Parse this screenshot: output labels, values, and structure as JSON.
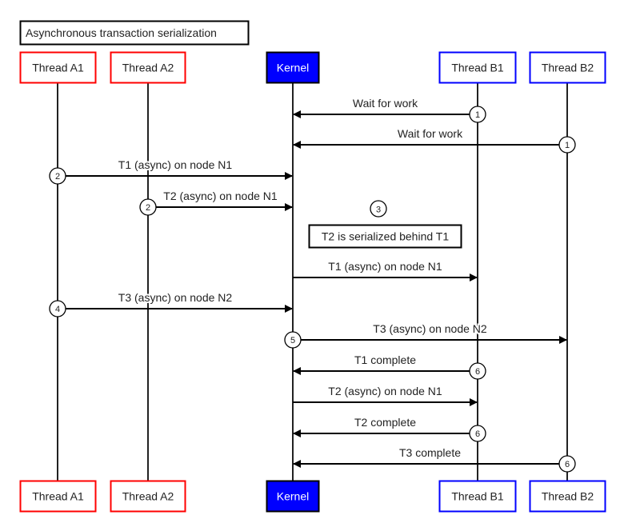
{
  "title": "Asynchronous transaction serialization",
  "colors": {
    "thread_a": "#ff0000",
    "kernel": "#0000ff",
    "thread_b": "#0000ff",
    "line": "#000000"
  },
  "participants": [
    {
      "id": "A1",
      "label": "Thread A1",
      "style": "red-outline"
    },
    {
      "id": "A2",
      "label": "Thread A2",
      "style": "red-outline"
    },
    {
      "id": "K",
      "label": "Kernel",
      "style": "blue-filled"
    },
    {
      "id": "B1",
      "label": "Thread B1",
      "style": "blue-outline"
    },
    {
      "id": "B2",
      "label": "Thread B2",
      "style": "blue-outline"
    }
  ],
  "messages": [
    {
      "from": "B1",
      "to": "K",
      "label": "Wait for work",
      "step": "1"
    },
    {
      "from": "B2",
      "to": "K",
      "label": "Wait for work",
      "step": "1"
    },
    {
      "from": "A1",
      "to": "K",
      "label": "T1 (async) on node N1",
      "step": "2"
    },
    {
      "from": "A2",
      "to": "K",
      "label": "T2 (async) on node N1",
      "step": "2"
    },
    {
      "from": "K",
      "to": "B1",
      "label": "T1 (async) on node N1",
      "step": ""
    },
    {
      "from": "A1",
      "to": "K",
      "label": "T3 (async) on node N2",
      "step": "4"
    },
    {
      "from": "K",
      "to": "B2",
      "label": "T3 (async) on node N2",
      "step": "5"
    },
    {
      "from": "B1",
      "to": "K",
      "label": "T1 complete",
      "step": "6"
    },
    {
      "from": "K",
      "to": "B1",
      "label": "T2 (async) on node N1",
      "step": ""
    },
    {
      "from": "B1",
      "to": "K",
      "label": "T2 complete",
      "step": "6"
    },
    {
      "from": "B2",
      "to": "K",
      "label": "T3 complete",
      "step": "6"
    }
  ],
  "note": {
    "step": "3",
    "text": "T2 is serialized behind T1"
  }
}
